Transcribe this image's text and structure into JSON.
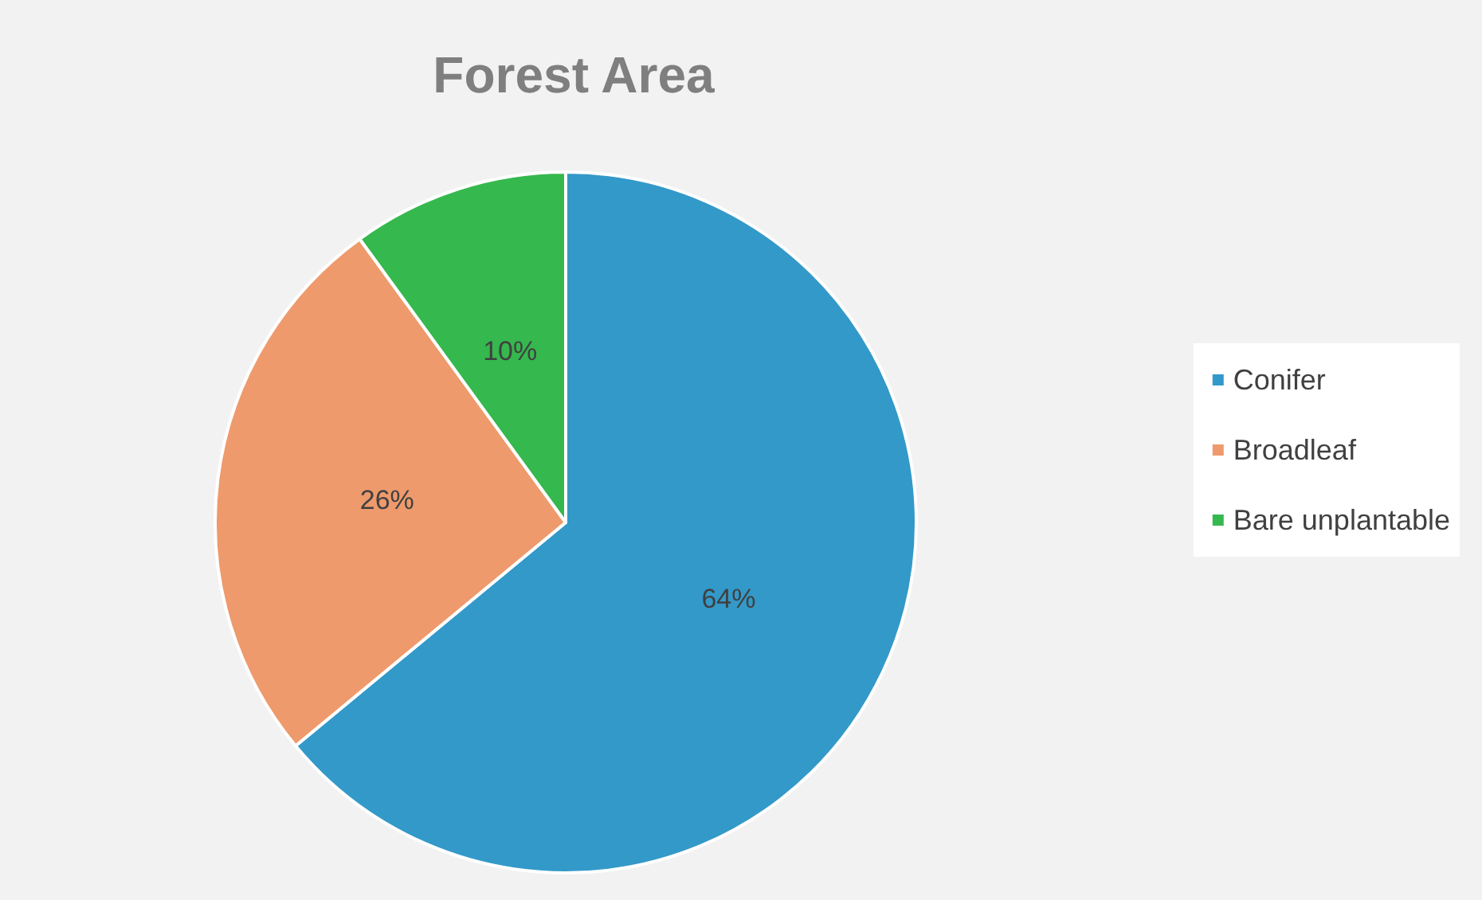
{
  "chart_data": {
    "type": "pie",
    "title": "Forest Area",
    "categories": [
      "Conifer",
      "Broadleaf",
      "Bare unplantable"
    ],
    "values": [
      64,
      26,
      10
    ],
    "colors": [
      "#3399c9",
      "#ee9a6c",
      "#35b84e"
    ],
    "value_labels": [
      "64%",
      "26%",
      "10%"
    ],
    "legend": "right"
  }
}
